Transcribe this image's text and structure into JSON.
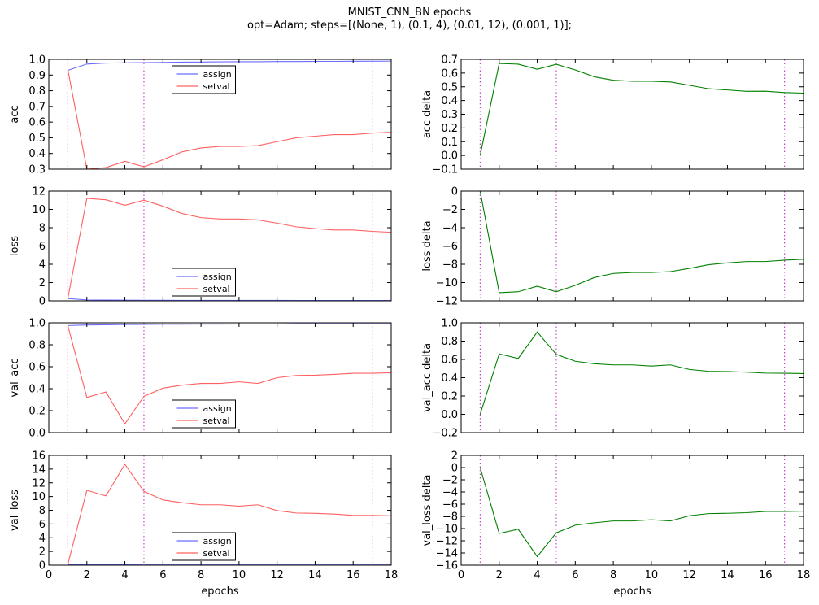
{
  "title_line1": "MNIST_CNN_BN epochs",
  "title_line2": "opt=Adam; steps=[(None, 1), (0.1, 4), (0.01, 12), (0.001, 1)];",
  "colors": {
    "assign": "#6b6bff",
    "setval": "#ff6060",
    "delta": "#008000",
    "vline": "#cc44cc"
  },
  "chart_data": [
    {
      "type": "line",
      "id": "acc",
      "ylabel": "acc",
      "xlabel": "",
      "xlim": [
        0,
        18
      ],
      "ylim": [
        0.3,
        1.0
      ],
      "yticks": [
        0.3,
        0.4,
        0.5,
        0.6,
        0.7,
        0.8,
        0.9,
        1.0
      ],
      "ytick_labels": [
        "0.3",
        "0.4",
        "0.5",
        "0.6",
        "0.7",
        "0.8",
        "0.9",
        "1.0"
      ],
      "xticks": [
        0,
        2,
        4,
        6,
        8,
        10,
        12,
        14,
        16,
        18
      ],
      "xtick_labels": [],
      "vlines": [
        1,
        5,
        17
      ],
      "legend": "upper-center",
      "series": [
        {
          "name": "assign",
          "color": "assign",
          "x": [
            1,
            2,
            3,
            4,
            5,
            6,
            7,
            8,
            9,
            10,
            11,
            12,
            13,
            14,
            15,
            16,
            17,
            18
          ],
          "y": [
            0.93,
            0.97,
            0.976,
            0.978,
            0.979,
            0.98,
            0.982,
            0.983,
            0.984,
            0.985,
            0.985,
            0.986,
            0.986,
            0.987,
            0.987,
            0.988,
            0.988,
            0.989
          ]
        },
        {
          "name": "setval",
          "color": "setval",
          "x": [
            1,
            2,
            3,
            4,
            5,
            6,
            7,
            8,
            9,
            10,
            11,
            12,
            13,
            14,
            15,
            16,
            17,
            18
          ],
          "y": [
            0.935,
            0.3,
            0.31,
            0.35,
            0.315,
            0.36,
            0.41,
            0.435,
            0.445,
            0.445,
            0.45,
            0.475,
            0.5,
            0.51,
            0.52,
            0.52,
            0.53,
            0.535
          ]
        }
      ]
    },
    {
      "type": "line",
      "id": "acc_delta",
      "ylabel": "acc delta",
      "xlabel": "",
      "xlim": [
        0,
        18
      ],
      "ylim": [
        -0.1,
        0.7
      ],
      "yticks": [
        -0.1,
        0.0,
        0.1,
        0.2,
        0.3,
        0.4,
        0.5,
        0.6,
        0.7
      ],
      "ytick_labels": [
        "−0.1",
        "0.0",
        "0.1",
        "0.2",
        "0.3",
        "0.4",
        "0.5",
        "0.6",
        "0.7"
      ],
      "xticks": [
        0,
        2,
        4,
        6,
        8,
        10,
        12,
        14,
        16,
        18
      ],
      "xtick_labels": [],
      "vlines": [
        1,
        5,
        17
      ],
      "legend": "none",
      "series": [
        {
          "name": "",
          "color": "delta",
          "x": [
            1,
            2,
            3,
            4,
            5,
            6,
            7,
            8,
            9,
            10,
            11,
            12,
            13,
            14,
            15,
            16,
            17,
            18
          ],
          "y": [
            0.0,
            0.67,
            0.665,
            0.628,
            0.664,
            0.623,
            0.573,
            0.548,
            0.54,
            0.54,
            0.535,
            0.511,
            0.486,
            0.477,
            0.467,
            0.468,
            0.458,
            0.454
          ]
        }
      ]
    },
    {
      "type": "line",
      "id": "loss",
      "ylabel": "loss",
      "xlabel": "",
      "xlim": [
        0,
        18
      ],
      "ylim": [
        0,
        12
      ],
      "yticks": [
        0,
        2,
        4,
        6,
        8,
        10,
        12
      ],
      "ytick_labels": [
        "0",
        "2",
        "4",
        "6",
        "8",
        "10",
        "12"
      ],
      "xticks": [
        0,
        2,
        4,
        6,
        8,
        10,
        12,
        14,
        16,
        18
      ],
      "xtick_labels": [],
      "vlines": [
        1,
        5,
        17
      ],
      "legend": "lower-center",
      "series": [
        {
          "name": "assign",
          "color": "assign",
          "x": [
            1,
            2,
            3,
            4,
            5,
            6,
            7,
            8,
            9,
            10,
            11,
            12,
            13,
            14,
            15,
            16,
            17,
            18
          ],
          "y": [
            0.25,
            0.1,
            0.08,
            0.07,
            0.06,
            0.06,
            0.05,
            0.05,
            0.05,
            0.05,
            0.05,
            0.05,
            0.04,
            0.04,
            0.04,
            0.04,
            0.04,
            0.04
          ]
        },
        {
          "name": "setval",
          "color": "setval",
          "x": [
            1,
            2,
            3,
            4,
            5,
            6,
            7,
            8,
            9,
            10,
            11,
            12,
            13,
            14,
            15,
            16,
            17,
            18
          ],
          "y": [
            0.25,
            11.2,
            11.05,
            10.45,
            11.0,
            10.35,
            9.55,
            9.1,
            8.95,
            8.95,
            8.85,
            8.5,
            8.1,
            7.9,
            7.75,
            7.75,
            7.6,
            7.5
          ]
        }
      ]
    },
    {
      "type": "line",
      "id": "loss_delta",
      "ylabel": "loss delta",
      "xlabel": "",
      "xlim": [
        0,
        18
      ],
      "ylim": [
        -12,
        0
      ],
      "yticks": [
        -12,
        -10,
        -8,
        -6,
        -4,
        -2,
        0
      ],
      "ytick_labels": [
        "−12",
        "−10",
        "−8",
        "−6",
        "−4",
        "−2",
        "0"
      ],
      "xticks": [
        0,
        2,
        4,
        6,
        8,
        10,
        12,
        14,
        16,
        18
      ],
      "xtick_labels": [],
      "vlines": [
        1,
        5,
        17
      ],
      "legend": "none",
      "series": [
        {
          "name": "",
          "color": "delta",
          "x": [
            1,
            2,
            3,
            4,
            5,
            6,
            7,
            8,
            9,
            10,
            11,
            12,
            13,
            14,
            15,
            16,
            17,
            18
          ],
          "y": [
            0.0,
            -11.1,
            -11.0,
            -10.4,
            -11.0,
            -10.3,
            -9.45,
            -9.0,
            -8.9,
            -8.9,
            -8.8,
            -8.45,
            -8.05,
            -7.85,
            -7.7,
            -7.7,
            -7.55,
            -7.45
          ]
        }
      ]
    },
    {
      "type": "line",
      "id": "val_acc",
      "ylabel": "val_acc",
      "xlabel": "",
      "xlim": [
        0,
        18
      ],
      "ylim": [
        0.0,
        1.0
      ],
      "yticks": [
        0.0,
        0.2,
        0.4,
        0.6,
        0.8,
        1.0
      ],
      "ytick_labels": [
        "0.0",
        "0.2",
        "0.4",
        "0.6",
        "0.8",
        "1.0"
      ],
      "xticks": [
        0,
        2,
        4,
        6,
        8,
        10,
        12,
        14,
        16,
        18
      ],
      "xtick_labels": [],
      "vlines": [
        1,
        5,
        17
      ],
      "legend": "lower-center",
      "series": [
        {
          "name": "assign",
          "color": "assign",
          "x": [
            1,
            2,
            3,
            4,
            5,
            6,
            7,
            8,
            9,
            10,
            11,
            12,
            13,
            14,
            15,
            16,
            17,
            18
          ],
          "y": [
            0.975,
            0.98,
            0.982,
            0.985,
            0.986,
            0.987,
            0.987,
            0.988,
            0.988,
            0.989,
            0.989,
            0.989,
            0.99,
            0.99,
            0.99,
            0.99,
            0.99,
            0.99
          ]
        },
        {
          "name": "setval",
          "color": "setval",
          "x": [
            1,
            2,
            3,
            4,
            5,
            6,
            7,
            8,
            9,
            10,
            11,
            12,
            13,
            14,
            15,
            16,
            17,
            18
          ],
          "y": [
            0.975,
            0.32,
            0.37,
            0.08,
            0.33,
            0.405,
            0.432,
            0.448,
            0.448,
            0.462,
            0.448,
            0.5,
            0.52,
            0.523,
            0.53,
            0.54,
            0.54,
            0.545
          ]
        }
      ]
    },
    {
      "type": "line",
      "id": "val_acc_delta",
      "ylabel": "val_acc delta",
      "xlabel": "",
      "xlim": [
        0,
        18
      ],
      "ylim": [
        -0.2,
        1.0
      ],
      "yticks": [
        -0.2,
        0.0,
        0.2,
        0.4,
        0.6,
        0.8,
        1.0
      ],
      "ytick_labels": [
        "−0.2",
        "0.0",
        "0.2",
        "0.4",
        "0.6",
        "0.8",
        "1.0"
      ],
      "xticks": [
        0,
        2,
        4,
        6,
        8,
        10,
        12,
        14,
        16,
        18
      ],
      "xtick_labels": [],
      "vlines": [
        1,
        5,
        17
      ],
      "legend": "none",
      "series": [
        {
          "name": "",
          "color": "delta",
          "x": [
            1,
            2,
            3,
            4,
            5,
            6,
            7,
            8,
            9,
            10,
            11,
            12,
            13,
            14,
            15,
            16,
            17,
            18
          ],
          "y": [
            0.0,
            0.66,
            0.61,
            0.9,
            0.655,
            0.58,
            0.553,
            0.54,
            0.54,
            0.527,
            0.54,
            0.49,
            0.47,
            0.467,
            0.46,
            0.45,
            0.448,
            0.445
          ]
        }
      ]
    },
    {
      "type": "line",
      "id": "val_loss",
      "ylabel": "val_loss",
      "xlabel": "epochs",
      "xlim": [
        0,
        18
      ],
      "ylim": [
        0,
        16
      ],
      "yticks": [
        0,
        2,
        4,
        6,
        8,
        10,
        12,
        14,
        16
      ],
      "ytick_labels": [
        "0",
        "2",
        "4",
        "6",
        "8",
        "10",
        "12",
        "14",
        "16"
      ],
      "xticks": [
        0,
        2,
        4,
        6,
        8,
        10,
        12,
        14,
        16,
        18
      ],
      "xtick_labels": [
        "0",
        "2",
        "4",
        "6",
        "8",
        "10",
        "12",
        "14",
        "16",
        "18"
      ],
      "vlines": [
        1,
        5,
        17
      ],
      "legend": "lower-center",
      "series": [
        {
          "name": "assign",
          "color": "assign",
          "x": [
            1,
            2,
            3,
            4,
            5,
            6,
            7,
            8,
            9,
            10,
            11,
            12,
            13,
            14,
            15,
            16,
            17,
            18
          ],
          "y": [
            0.1,
            0.06,
            0.05,
            0.05,
            0.04,
            0.04,
            0.04,
            0.04,
            0.04,
            0.04,
            0.04,
            0.04,
            0.04,
            0.04,
            0.04,
            0.04,
            0.04,
            0.04
          ]
        },
        {
          "name": "setval",
          "color": "setval",
          "x": [
            1,
            2,
            3,
            4,
            5,
            6,
            7,
            8,
            9,
            10,
            11,
            12,
            13,
            14,
            15,
            16,
            17,
            18
          ],
          "y": [
            0.1,
            10.9,
            10.1,
            14.7,
            10.75,
            9.5,
            9.1,
            8.8,
            8.8,
            8.6,
            8.8,
            7.95,
            7.6,
            7.55,
            7.45,
            7.25,
            7.25,
            7.2
          ]
        }
      ]
    },
    {
      "type": "line",
      "id": "val_loss_delta",
      "ylabel": "val_loss delta",
      "xlabel": "epochs",
      "xlim": [
        0,
        18
      ],
      "ylim": [
        -16,
        2
      ],
      "yticks": [
        -16,
        -14,
        -12,
        -10,
        -8,
        -6,
        -4,
        -2,
        0,
        2
      ],
      "ytick_labels": [
        "−16",
        "−14",
        "−12",
        "−10",
        "−8",
        "−6",
        "−4",
        "−2",
        "0",
        "2"
      ],
      "xticks": [
        0,
        2,
        4,
        6,
        8,
        10,
        12,
        14,
        16,
        18
      ],
      "xtick_labels": [
        "0",
        "2",
        "4",
        "6",
        "8",
        "10",
        "12",
        "14",
        "16",
        "18"
      ],
      "vlines": [
        1,
        5,
        17
      ],
      "legend": "none",
      "series": [
        {
          "name": "",
          "color": "delta",
          "x": [
            1,
            2,
            3,
            4,
            5,
            6,
            7,
            8,
            9,
            10,
            11,
            12,
            13,
            14,
            15,
            16,
            17,
            18
          ],
          "y": [
            0.0,
            -10.8,
            -10.1,
            -14.6,
            -10.7,
            -9.45,
            -9.05,
            -8.75,
            -8.75,
            -8.55,
            -8.75,
            -7.9,
            -7.55,
            -7.5,
            -7.4,
            -7.2,
            -7.2,
            -7.15
          ]
        }
      ]
    }
  ]
}
